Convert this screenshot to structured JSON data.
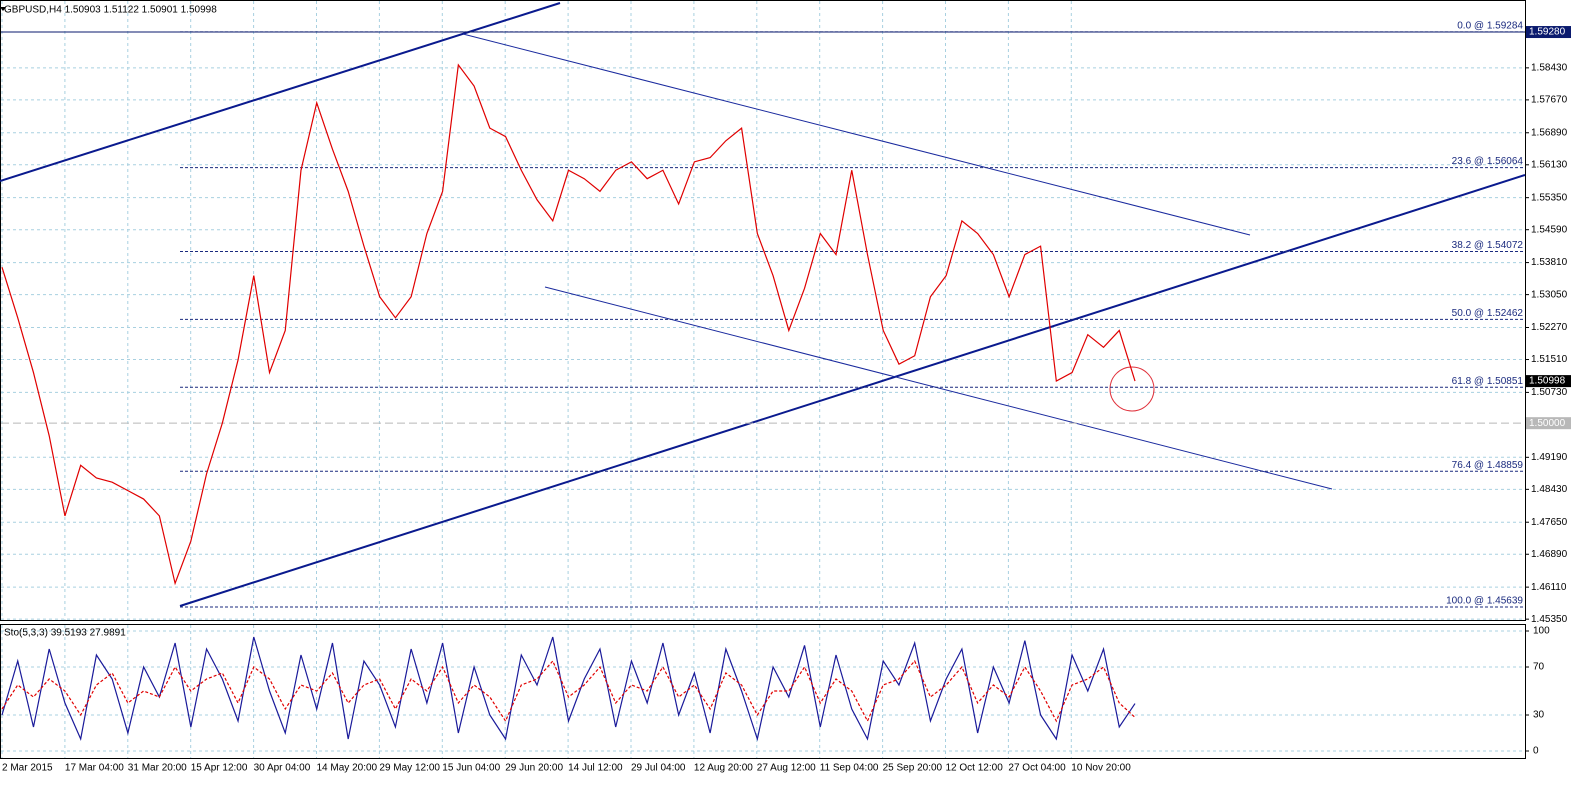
{
  "chart_data": {
    "type": "line",
    "header": "GBPUSD,H4  1.50903 1.51122 1.50901 1.50998",
    "ylim": [
      1.4533,
      1.6004
    ],
    "yticks": [
      {
        "value": 1.5843,
        "label": "1.58430"
      },
      {
        "value": 1.5767,
        "label": "1.57670"
      },
      {
        "value": 1.5689,
        "label": "1.56890"
      },
      {
        "value": 1.5613,
        "label": "1.56130"
      },
      {
        "value": 1.5535,
        "label": "1.55350"
      },
      {
        "value": 1.5459,
        "label": "1.54590"
      },
      {
        "value": 1.5381,
        "label": "1.53810"
      },
      {
        "value": 1.5305,
        "label": "1.53050"
      },
      {
        "value": 1.5227,
        "label": "1.52270"
      },
      {
        "value": 1.5151,
        "label": "1.51510"
      },
      {
        "value": 1.5073,
        "label": "1.50730"
      },
      {
        "value": 1.4919,
        "label": "1.49190"
      },
      {
        "value": 1.4843,
        "label": "1.48430"
      },
      {
        "value": 1.4765,
        "label": "1.47650"
      },
      {
        "value": 1.4689,
        "label": "1.46890"
      },
      {
        "value": 1.4611,
        "label": "1.46110"
      },
      {
        "value": 1.4535,
        "label": "1.45350"
      }
    ],
    "grid": true,
    "x_labels": [
      "2 Mar 2015",
      "17 Mar 04:00",
      "31 Mar 20:00",
      "15 Apr 12:00",
      "30 Apr 04:00",
      "14 May 20:00",
      "29 May 12:00",
      "15 Jun 04:00",
      "29 Jun 20:00",
      "14 Jul 12:00",
      "29 Jul 04:00",
      "12 Aug 20:00",
      "27 Aug 12:00",
      "11 Sep 04:00",
      "25 Sep 20:00",
      "12 Oct 12:00",
      "27 Oct 04:00",
      "10 Nov 20:00"
    ],
    "series": [
      {
        "name": "GBPUSD",
        "color": "#e00000",
        "values": [
          1.537,
          1.525,
          1.512,
          1.497,
          1.478,
          1.49,
          1.487,
          1.486,
          1.484,
          1.482,
          1.478,
          1.462,
          1.472,
          1.488,
          1.5,
          1.515,
          1.535,
          1.512,
          1.522,
          1.56,
          1.576,
          1.565,
          1.555,
          1.542,
          1.53,
          1.525,
          1.53,
          1.545,
          1.555,
          1.585,
          1.58,
          1.57,
          1.568,
          1.56,
          1.553,
          1.548,
          1.56,
          1.558,
          1.555,
          1.56,
          1.562,
          1.558,
          1.56,
          1.552,
          1.562,
          1.563,
          1.567,
          1.57,
          1.545,
          1.535,
          1.522,
          1.532,
          1.545,
          1.54,
          1.56,
          1.54,
          1.522,
          1.514,
          1.516,
          1.53,
          1.535,
          1.548,
          1.545,
          1.54,
          1.53,
          1.54,
          1.542,
          1.51,
          1.512,
          1.521,
          1.518,
          1.522,
          1.51
        ]
      }
    ],
    "fib_levels": [
      {
        "value": 1.59284,
        "label": "0.0 @ 1.59284"
      },
      {
        "value": 1.56064,
        "label": "23.6 @ 1.56064"
      },
      {
        "value": 1.54072,
        "label": "38.2 @ 1.54072"
      },
      {
        "value": 1.52462,
        "label": "50.0 @ 1.52462"
      },
      {
        "value": 1.50851,
        "label": "61.8 @ 1.50851"
      },
      {
        "value": 1.48859,
        "label": "76.4 @ 1.48859"
      },
      {
        "value": 1.45639,
        "label": "100.0 @ 1.45639"
      }
    ],
    "price_markers": [
      {
        "value": 1.5928,
        "label": "1.59280",
        "color": "#0a1a6e",
        "line": "solid"
      },
      {
        "value": 1.50998,
        "label": "1.50998",
        "color": "#000000",
        "line": "none"
      },
      {
        "value": 1.5,
        "label": "1.50000",
        "color": "#b8b8b8",
        "line": "dashed"
      }
    ],
    "indicator": {
      "type": "line",
      "title": "Sto(5,3,3) 39.5193 27.9891",
      "ylim": [
        0,
        100
      ],
      "yticks": [
        0,
        30,
        70,
        100
      ],
      "series": [
        {
          "name": "Main",
          "color": "#1a1a9a",
          "values": [
            30,
            75,
            20,
            85,
            40,
            10,
            80,
            60,
            15,
            70,
            45,
            90,
            20,
            85,
            60,
            25,
            95,
            50,
            15,
            80,
            35,
            90,
            10,
            75,
            55,
            20,
            85,
            40,
            90,
            15,
            70,
            30,
            10,
            80,
            55,
            95,
            25,
            60,
            85,
            20,
            75,
            40,
            90,
            30,
            65,
            15,
            85,
            50,
            10,
            70,
            45,
            88,
            20,
            80,
            35,
            10,
            75,
            55,
            90,
            25,
            60,
            85,
            15,
            70,
            40,
            92,
            30,
            10,
            80,
            50,
            85,
            20,
            39.5
          ]
        },
        {
          "name": "Signal",
          "color": "#e00000",
          "values": [
            35,
            55,
            45,
            60,
            50,
            30,
            55,
            65,
            40,
            50,
            45,
            70,
            50,
            60,
            65,
            40,
            70,
            60,
            35,
            55,
            50,
            65,
            40,
            55,
            60,
            35,
            60,
            50,
            70,
            40,
            55,
            45,
            25,
            55,
            60,
            75,
            45,
            55,
            70,
            40,
            55,
            50,
            70,
            45,
            55,
            35,
            65,
            55,
            30,
            50,
            50,
            70,
            40,
            60,
            50,
            25,
            55,
            60,
            75,
            45,
            55,
            70,
            40,
            55,
            45,
            70,
            50,
            25,
            55,
            60,
            70,
            40,
            28
          ]
        }
      ]
    }
  }
}
